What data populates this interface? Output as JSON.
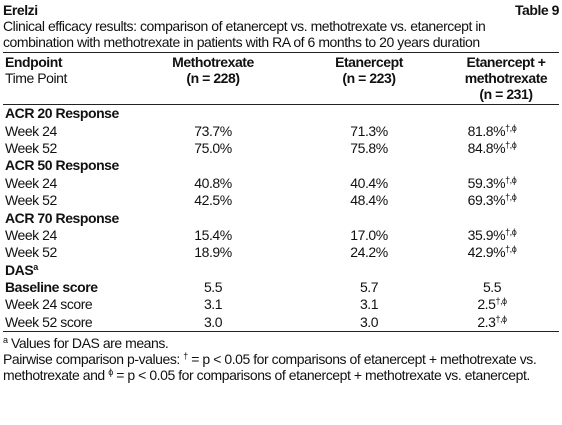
{
  "header": {
    "product": "Erelzi",
    "table_number": "Table 9"
  },
  "caption": "Clinical efficacy results: comparison of etanercept vs. methotrexate vs. etanercept in combination with methotrexate in patients with RA of 6 months to 20 years duration",
  "table": {
    "columns": [
      [
        "Endpoint",
        "Time Point"
      ],
      [
        "Methotrexate",
        "(n = 228)"
      ],
      [
        "Etanercept",
        "(n = 223)"
      ],
      [
        "Etanercept +",
        "methotrexate",
        "(n = 231)"
      ]
    ],
    "sections": [
      {
        "title": "ACR 20 Response",
        "rows": [
          {
            "label": "Week 24",
            "values": [
              {
                "text": "73.7%"
              },
              {
                "text": "71.3%"
              },
              {
                "text": "81.8%",
                "sup": "†,ϕ"
              }
            ]
          },
          {
            "label": "Week 52",
            "values": [
              {
                "text": "75.0%"
              },
              {
                "text": "75.8%"
              },
              {
                "text": "84.8%",
                "sup": "†,ϕ"
              }
            ]
          }
        ]
      },
      {
        "title": "ACR 50 Response",
        "rows": [
          {
            "label": "Week 24",
            "values": [
              {
                "text": "40.8%"
              },
              {
                "text": "40.4%"
              },
              {
                "text": "59.3%",
                "sup": "†,ϕ"
              }
            ]
          },
          {
            "label": "Week 52",
            "values": [
              {
                "text": "42.5%"
              },
              {
                "text": "48.4%"
              },
              {
                "text": "69.3%",
                "sup": "†,ϕ"
              }
            ]
          }
        ]
      },
      {
        "title": "ACR 70 Response",
        "rows": [
          {
            "label": "Week 24",
            "values": [
              {
                "text": "15.4%"
              },
              {
                "text": "17.0%"
              },
              {
                "text": "35.9%",
                "sup": "†,ϕ"
              }
            ]
          },
          {
            "label": "Week 52",
            "values": [
              {
                "text": "18.9%"
              },
              {
                "text": "24.2%"
              },
              {
                "text": "42.9%",
                "sup": "†,ϕ"
              }
            ]
          }
        ]
      },
      {
        "title": "DAS",
        "title_sup": "a",
        "rows": [
          {
            "label": "Baseline score",
            "label_bold": true,
            "values": [
              {
                "text": "5.5"
              },
              {
                "text": "5.7"
              },
              {
                "text": "5.5"
              }
            ]
          },
          {
            "label": "Week 24 score",
            "values": [
              {
                "text": "3.1"
              },
              {
                "text": "3.1"
              },
              {
                "text": "2.5",
                "sup": "†,ϕ"
              }
            ]
          },
          {
            "label": "Week 52 score",
            "values": [
              {
                "text": "3.0"
              },
              {
                "text": "3.0"
              },
              {
                "text": "2.3",
                "sup": "†,ϕ"
              }
            ]
          }
        ]
      }
    ]
  },
  "footnotes": [
    [
      {
        "sup": "a"
      },
      {
        "text": " Values for DAS are means."
      }
    ],
    [
      {
        "text": "Pairwise comparison p-values: "
      },
      {
        "sup": "†"
      },
      {
        "text": " = p < 0.05 for comparisons of etanercept + methotrexate vs. methotrexate and "
      },
      {
        "sup": "ϕ"
      },
      {
        "text": " = p < 0.05 for comparisons of etanercept + methotrexate vs. etanercept."
      }
    ]
  ]
}
